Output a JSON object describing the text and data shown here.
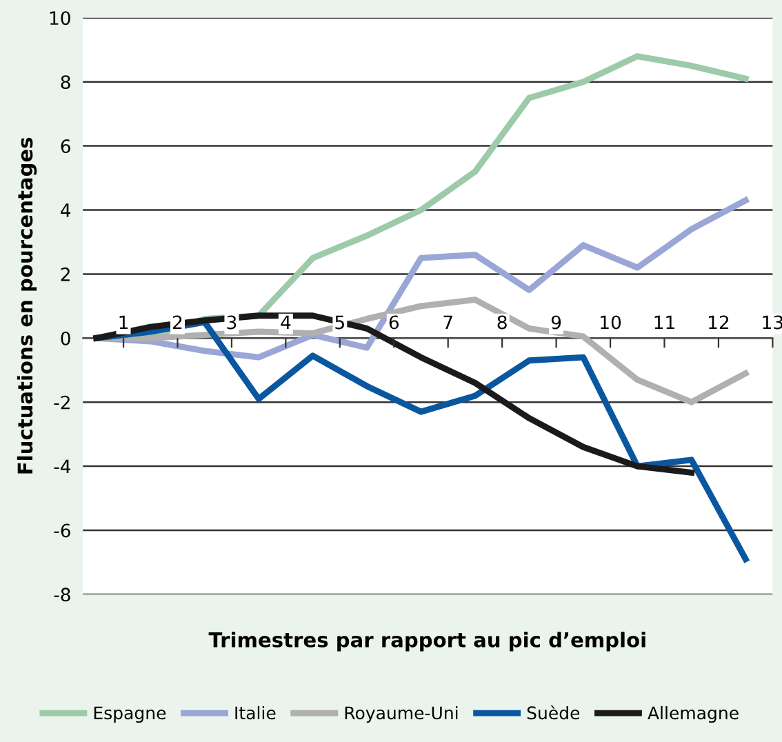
{
  "chart_data": {
    "type": "line",
    "xlabel": "Trimestres par rapport au pic d’emploi",
    "ylabel": "Fluctuations en pourcentages",
    "x": [
      0.5,
      1.5,
      2.5,
      3.5,
      4.5,
      5.5,
      6.5,
      7.5,
      8.5,
      9.5,
      10.5,
      11.5,
      12.5
    ],
    "series": [
      {
        "name": "Espagne",
        "color": "#9dcaa8",
        "values": [
          0,
          0.05,
          0.6,
          0.7,
          2.5,
          3.2,
          4.0,
          5.2,
          7.5,
          8.0,
          8.8,
          8.5,
          8.1
        ]
      },
      {
        "name": "Italie",
        "color": "#9aa6d6",
        "values": [
          0,
          -0.1,
          -0.4,
          -0.6,
          0.1,
          -0.3,
          2.5,
          2.6,
          1.5,
          2.9,
          2.2,
          3.4,
          4.3
        ]
      },
      {
        "name": "Royaume-Uni",
        "color": "#b0b0b0",
        "values": [
          0,
          0,
          0.1,
          0.2,
          0.15,
          0.6,
          1.0,
          1.2,
          0.3,
          0.05,
          -1.3,
          -2.0,
          -1.1
        ]
      },
      {
        "name": "Suède",
        "color": "#0a57a0",
        "values": [
          0,
          0.2,
          0.5,
          -1.9,
          -0.55,
          -1.5,
          -2.3,
          -1.8,
          -0.7,
          -0.6,
          -4.0,
          -3.8,
          -6.9
        ]
      },
      {
        "name": "Allemagne",
        "color": "#1a1a1a",
        "values": [
          0,
          0.35,
          0.55,
          0.7,
          0.7,
          0.3,
          -0.6,
          -1.4,
          -2.5,
          -3.4,
          -4.0,
          -4.2,
          null
        ]
      }
    ],
    "xlim": [
      0.25,
      13
    ],
    "xticks": [
      1,
      2,
      3,
      4,
      5,
      6,
      7,
      8,
      9,
      10,
      11,
      12,
      13
    ],
    "ylim": [
      -8,
      10
    ],
    "yticks": [
      -8,
      -6,
      -4,
      -2,
      0,
      2,
      4,
      6,
      8,
      10
    ],
    "grid": "y",
    "legend": "bottom",
    "marker": "none",
    "line_style": "solid"
  }
}
